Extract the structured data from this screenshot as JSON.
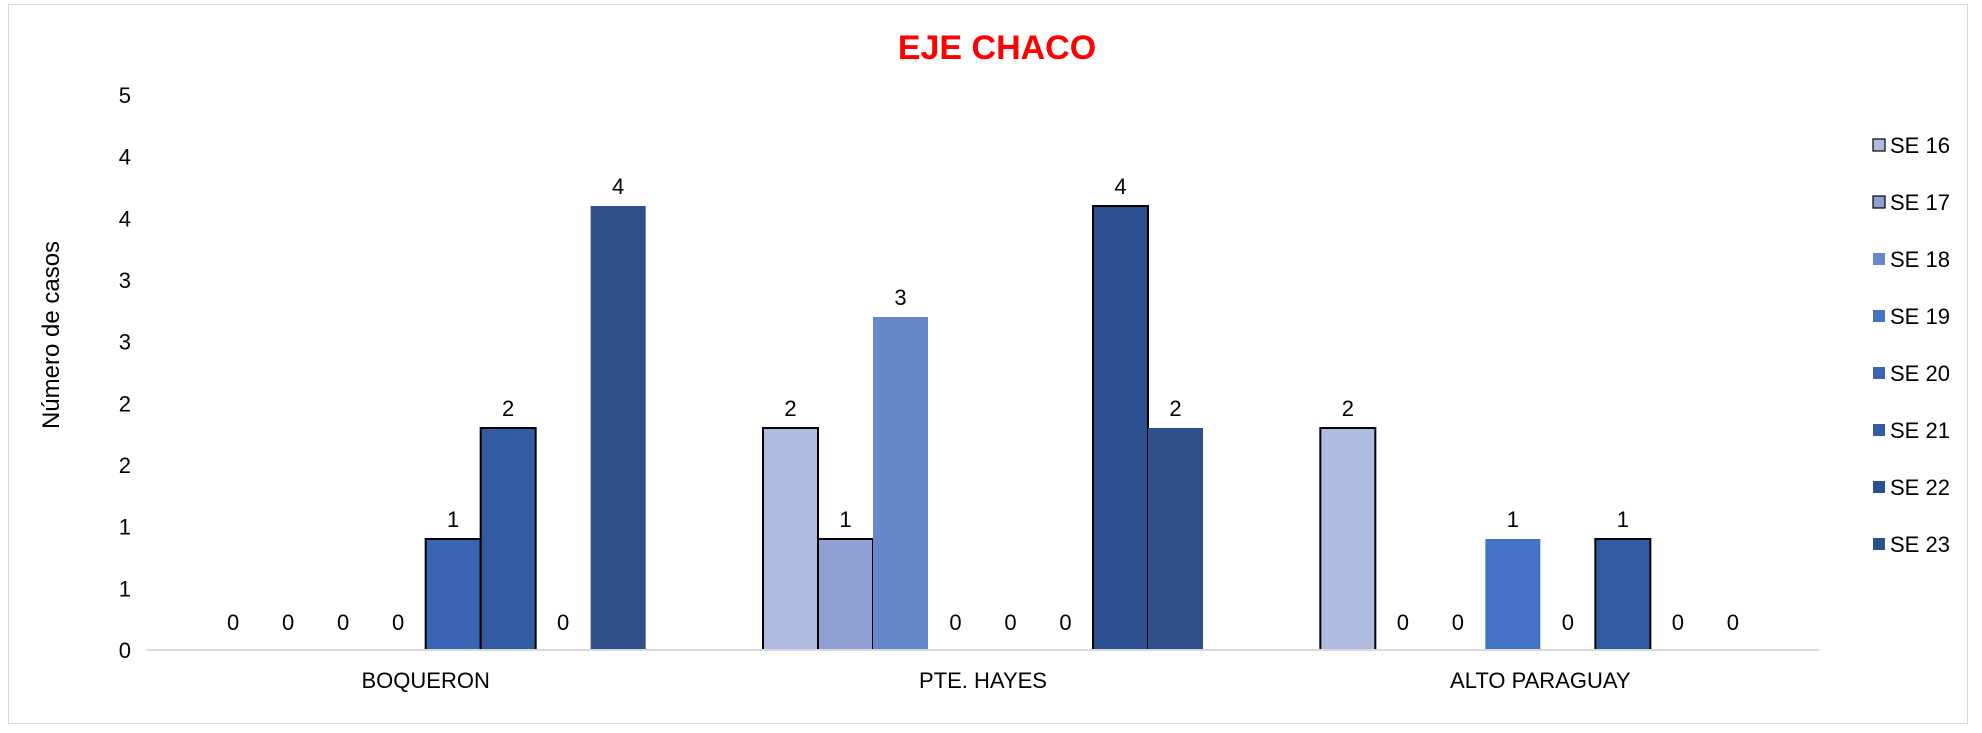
{
  "chart_data": {
    "type": "bar",
    "title": "EJE CHACO",
    "xlabel": "",
    "ylabel": "Número de casos",
    "ylim": [
      0,
      5
    ],
    "y_tick_labels": [
      "0",
      "1",
      "1",
      "2",
      "2",
      "3",
      "3",
      "4",
      "4",
      "5"
    ],
    "categories": [
      "BOQUERON",
      "PTE. HAYES",
      "ALTO PARAGUAY"
    ],
    "series": [
      {
        "name": "SE 16",
        "color": "#b0bcdf",
        "values": [
          0,
          2,
          2
        ]
      },
      {
        "name": "SE 17",
        "color": "#8fa1d4",
        "values": [
          0,
          1,
          0
        ]
      },
      {
        "name": "SE 18",
        "color": "#6687c9",
        "values": [
          0,
          3,
          0
        ]
      },
      {
        "name": "SE 19",
        "color": "#4472c4",
        "values": [
          0,
          0,
          1
        ]
      },
      {
        "name": "SE 20",
        "color": "#3a65b5",
        "values": [
          1,
          0,
          0
        ]
      },
      {
        "name": "SE 21",
        "color": "#335ba2",
        "values": [
          2,
          0,
          1
        ]
      },
      {
        "name": "SE 22",
        "color": "#2c4f8f",
        "values": [
          0,
          4,
          0
        ]
      },
      {
        "name": "SE 23",
        "color": "#2e4f87",
        "values": [
          4,
          2,
          0
        ]
      }
    ],
    "bar_borders": [
      [
        false,
        false,
        false,
        false,
        true,
        true,
        false,
        false
      ],
      [
        true,
        true,
        false,
        false,
        false,
        false,
        true,
        false
      ],
      [
        true,
        false,
        false,
        false,
        false,
        true,
        false,
        false
      ]
    ],
    "grid": false,
    "legend_position": "right"
  }
}
